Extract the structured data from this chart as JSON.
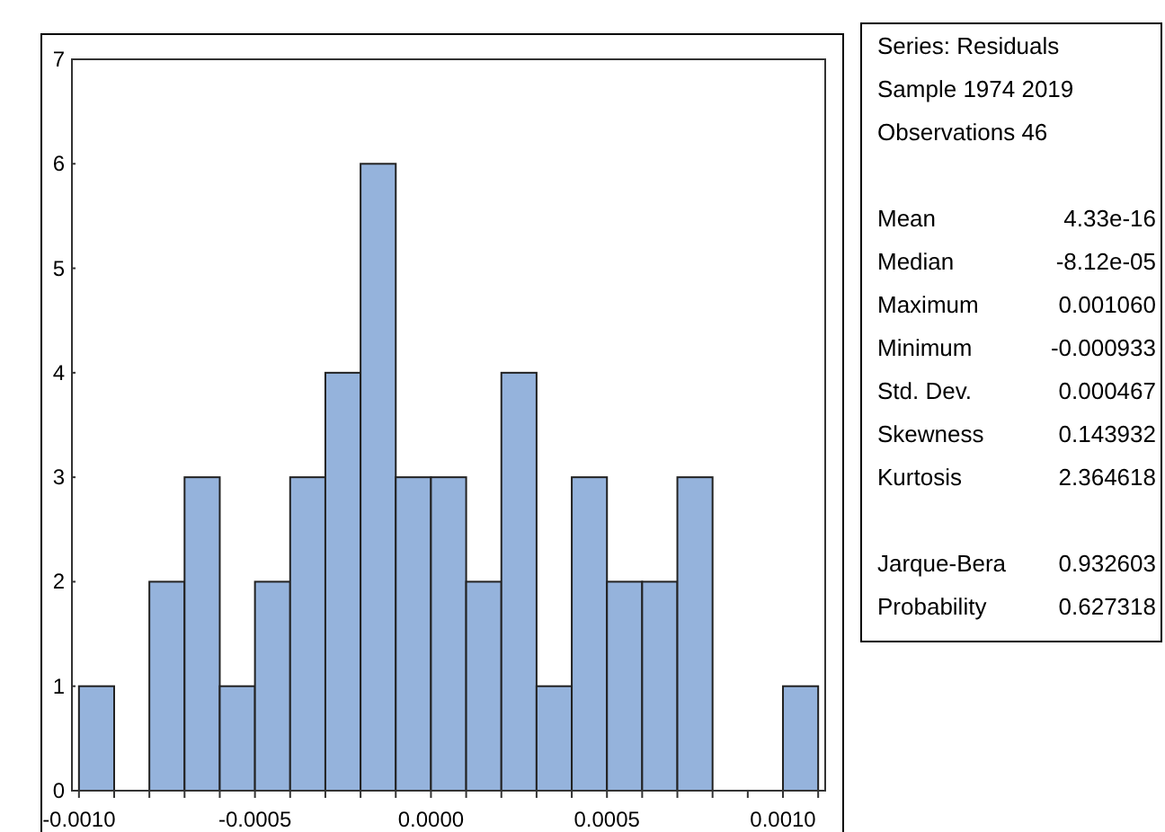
{
  "chart_data": {
    "type": "histogram",
    "bins": [
      -0.001,
      -0.0009,
      -0.0008,
      -0.0007,
      -0.0006,
      -0.0005,
      -0.0004,
      -0.0003,
      -0.0002,
      -0.0001,
      0,
      0.0001,
      0.0002,
      0.0003,
      0.0004,
      0.0005,
      0.0006,
      0.0007,
      0.0008,
      0.0009,
      0.001,
      0.0011
    ],
    "values": [
      1,
      0,
      2,
      3,
      1,
      2,
      3,
      4,
      6,
      3,
      3,
      2,
      4,
      1,
      3,
      2,
      2,
      3,
      0,
      0,
      1
    ],
    "color": "#95b3dc",
    "xlim": [
      -0.00102,
      0.00112
    ],
    "xticks": [
      {
        "value": -0.001,
        "label": "-0.0010"
      },
      {
        "value": -0.0009,
        "label": null
      },
      {
        "value": -0.0008,
        "label": null
      },
      {
        "value": -0.0007,
        "label": null
      },
      {
        "value": -0.0006,
        "label": null
      },
      {
        "value": -0.0005,
        "label": "-0.0005"
      },
      {
        "value": -0.0004,
        "label": null
      },
      {
        "value": -0.0003,
        "label": null
      },
      {
        "value": -0.0002,
        "label": null
      },
      {
        "value": -0.0001,
        "label": null
      },
      {
        "value": 0,
        "label": "0.0000"
      },
      {
        "value": 0.0001,
        "label": null
      },
      {
        "value": 0.0002,
        "label": null
      },
      {
        "value": 0.0003,
        "label": null
      },
      {
        "value": 0.0004,
        "label": null
      },
      {
        "value": 0.0005,
        "label": "0.0005"
      },
      {
        "value": 0.0006,
        "label": null
      },
      {
        "value": 0.0007,
        "label": null
      },
      {
        "value": 0.0008,
        "label": null
      },
      {
        "value": 0.0009,
        "label": null
      },
      {
        "value": 0.001,
        "label": "0.0010"
      },
      {
        "value": 0.0011,
        "label": null
      }
    ],
    "ylim": [
      0,
      7
    ],
    "yticks": [
      0,
      1,
      2,
      3,
      4,
      5,
      6,
      7
    ],
    "annotations": [
      "Series: Residuals",
      "Sample 1974 2019",
      "Observations 46",
      "Mean 4.33e-16",
      "Median -8.12e-05",
      "Maximum 0.001060",
      "Minimum -0.000933",
      "Std. Dev. 0.000467",
      "Skewness 0.143932",
      "Kurtosis 2.364618",
      "Jarque-Bera 0.932603",
      "Probability 0.627318"
    ]
  }
}
